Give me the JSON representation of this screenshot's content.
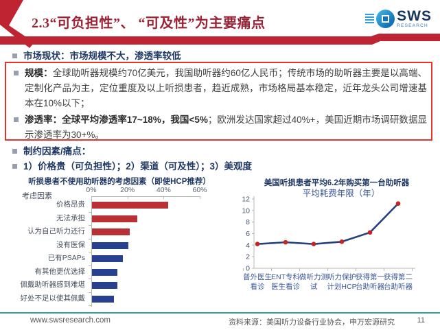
{
  "header": {
    "title": "2.3“可负担性”、 “可及性”为主要痛点",
    "logo_text": "SWS",
    "logo_sub": "RESEARCH"
  },
  "content": {
    "bullet1": "市场现状：市场规模不大，渗透率较低",
    "scale_label": "规模：",
    "scale_text": "全球助听器规模约70亿美元，我国助听器约60亿人民币；传统市场的助听器主要是以高端、定制化产品为主，定位重度及以上听损患者，趋近成熟，市场格局基本稳定，近年龙头公司增速基本在10%以下；",
    "penetration_bold": "渗透率：全球平均渗透率17~18%，我国<5%",
    "penetration_rest": "；欧洲发达国家超过40%+，美国近期市场调研数据显示渗透率为30+%。",
    "bullet4": "制约因素/痛点：",
    "bullet5": "1）价格贵（可负担性）；2）渠道（可及性）；3）美观度"
  },
  "chart_data": [
    {
      "type": "bar",
      "orientation": "horizontal",
      "title": "听损患者不使用助听器的考虑因素（即使HCP推荐）",
      "axis_label": "考虑因素",
      "categories": [
        "价格昂贵",
        "无法承担",
        "认为自己听力还行",
        "没有医保",
        "已有PSAPs",
        "有其他更优选择",
        "佩戴助听器感到难堪",
        "好处不足以使其佩戴"
      ],
      "values": [
        42,
        25,
        21,
        20,
        17,
        14,
        14,
        12
      ],
      "bar_colors": [
        "#B93134",
        "#B93134",
        "#B93134",
        "#27408F",
        "#27408F",
        "#27408F",
        "#27408F",
        "#27408F"
      ],
      "xlim": [
        0,
        60
      ],
      "xticks": [
        "0%",
        "20%",
        "40%",
        "60%"
      ],
      "grid": false
    },
    {
      "type": "line",
      "title": "美国听损患者平均6.2年购买第一台助听器",
      "inner_title": "平均耗费年限（年）",
      "categories": [
        "普外医生看诊",
        "ENT专科医生看诊",
        "做听力测试",
        "听力保护计划HCP",
        "获得第一台助听器",
        "获得第二台助听器"
      ],
      "label_lines": [
        [
          "普外医生",
          "看诊"
        ],
        [
          "ENT专科",
          "医生看诊"
        ],
        [
          "做听力测",
          "试"
        ],
        [
          "听力保护",
          "计划HCP"
        ],
        [
          "获得第一",
          "台助听器"
        ],
        [
          "获得第二",
          "台助听器"
        ]
      ],
      "values": [
        4.2,
        4.5,
        4.2,
        4.6,
        6.2,
        11.2
      ],
      "ylim": [
        0,
        12
      ],
      "yticks": [
        0,
        2,
        4,
        6,
        8,
        10,
        12
      ],
      "line_color": "#24407E",
      "marker_color": "#C52422",
      "grid": false,
      "legend": "none"
    }
  ],
  "footer": {
    "url": "www.swsresearch.com",
    "source": "资料来源：美国听力设备行业协会，申万宏源研究",
    "page": "11"
  },
  "colors": {
    "accent_red": "#BE2431",
    "title_red": "#9B2235",
    "dark_blue": "#1F3864",
    "bar_red": "#B93134",
    "bar_blue": "#27408F",
    "box_border": "#E3342B",
    "footer_teal": "#2EA3A3"
  }
}
